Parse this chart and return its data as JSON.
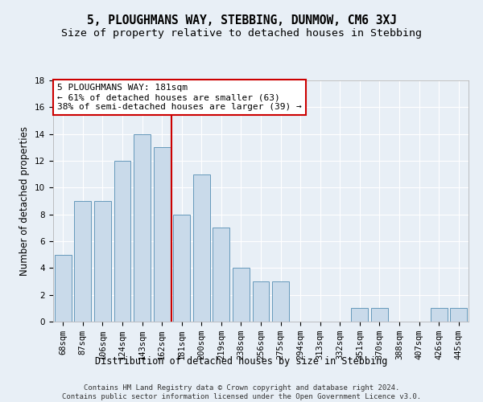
{
  "title": "5, PLOUGHMANS WAY, STEBBING, DUNMOW, CM6 3XJ",
  "subtitle": "Size of property relative to detached houses in Stebbing",
  "xlabel": "Distribution of detached houses by size in Stebbing",
  "ylabel": "Number of detached properties",
  "categories": [
    "68sqm",
    "87sqm",
    "106sqm",
    "124sqm",
    "143sqm",
    "162sqm",
    "181sqm",
    "200sqm",
    "219sqm",
    "238sqm",
    "256sqm",
    "275sqm",
    "294sqm",
    "313sqm",
    "332sqm",
    "351sqm",
    "370sqm",
    "388sqm",
    "407sqm",
    "426sqm",
    "445sqm"
  ],
  "values": [
    5,
    9,
    9,
    12,
    14,
    13,
    8,
    11,
    7,
    4,
    3,
    3,
    0,
    0,
    0,
    1,
    1,
    0,
    0,
    1,
    1
  ],
  "highlight_index": 6,
  "bar_color": "#c9daea",
  "bar_edge_color": "#6699bb",
  "highlight_line_color": "#cc0000",
  "annotation_text": "5 PLOUGHMANS WAY: 181sqm\n← 61% of detached houses are smaller (63)\n38% of semi-detached houses are larger (39) →",
  "annotation_box_color": "#ffffff",
  "annotation_box_edge_color": "#cc0000",
  "ylim": [
    0,
    18
  ],
  "yticks": [
    0,
    2,
    4,
    6,
    8,
    10,
    12,
    14,
    16,
    18
  ],
  "footer_text": "Contains HM Land Registry data © Crown copyright and database right 2024.\nContains public sector information licensed under the Open Government Licence v3.0.",
  "background_color": "#e8eff6",
  "grid_color": "#ffffff",
  "title_fontsize": 10.5,
  "subtitle_fontsize": 9.5,
  "axis_label_fontsize": 8.5,
  "tick_fontsize": 7.5,
  "annotation_fontsize": 8,
  "footer_fontsize": 6.5
}
